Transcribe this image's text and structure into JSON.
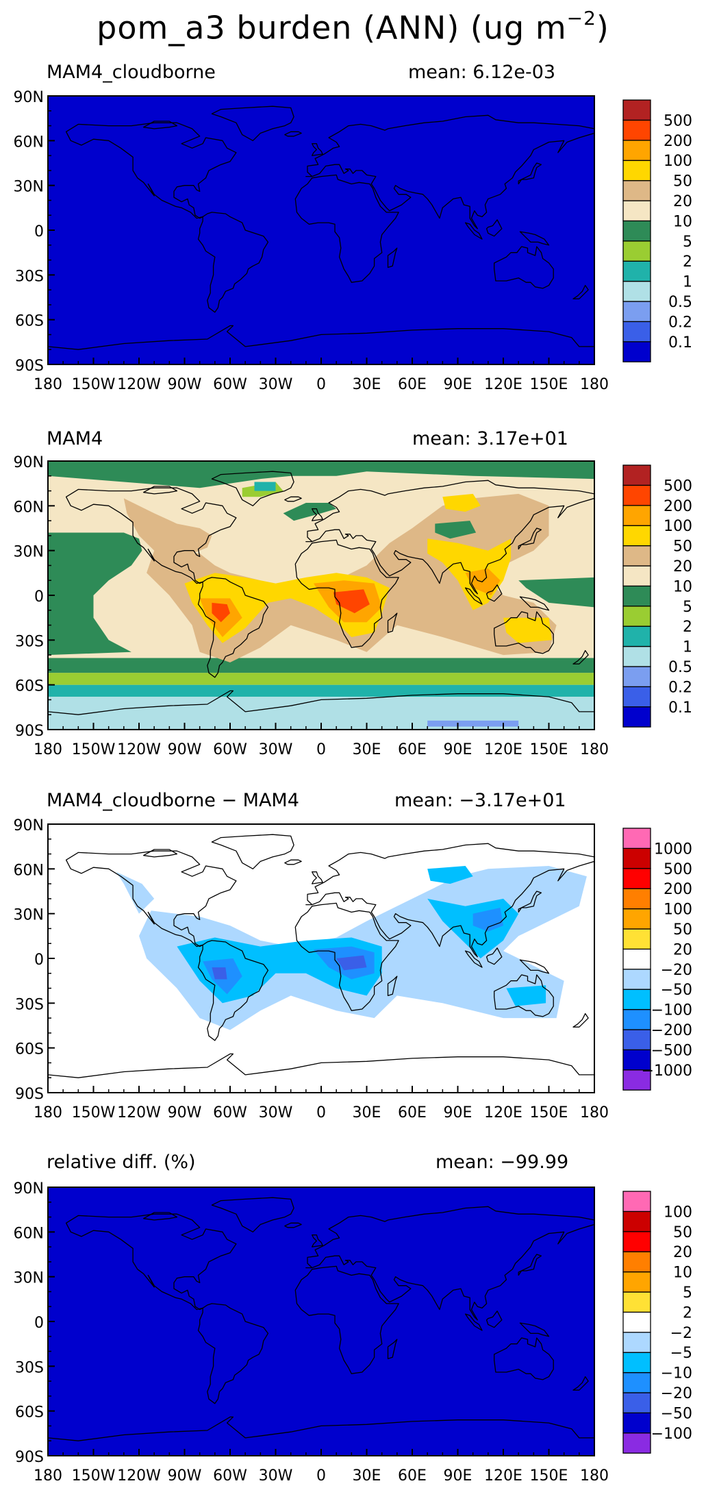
{
  "title": {
    "main": "pom_a3 burden (ANN) (ug m",
    "unit_exponent": "−2",
    "close": ")"
  },
  "axes": {
    "lat_labels": [
      "90N",
      "60N",
      "30N",
      "0",
      "30S",
      "60S",
      "90S"
    ],
    "lon_labels": [
      "180",
      "150W",
      "120W",
      "90W",
      "60W",
      "30W",
      "0",
      "30E",
      "60E",
      "90E",
      "120E",
      "150E",
      "180"
    ]
  },
  "colors": {
    "burden_scale": [
      "#0000CD",
      "#3A5FE8",
      "#7B9EF0",
      "#B0E0E6",
      "#20B2AA",
      "#9ACD32",
      "#2E8B57",
      "#F5E6C4",
      "#DEB887",
      "#FFD700",
      "#FFA500",
      "#FF4500",
      "#B22222"
    ],
    "diff_scale": [
      "#8A2BE2",
      "#0000CD",
      "#3A5FE8",
      "#1E90FF",
      "#00BFFF",
      "#ADD8FF",
      "#FFFFFF",
      "#FFE135",
      "#FFA500",
      "#FF7F00",
      "#FF0000",
      "#CC0000",
      "#FF69B4"
    ],
    "coast": "#000000",
    "frame": "#000000"
  },
  "chart_data": [
    {
      "type": "heatmap",
      "label": "MAM4_cloudborne",
      "mean_text": "mean: 6.12e-03",
      "mean": 0.00612,
      "colorbar_levels": [
        "0.1",
        "0.2",
        "0.5",
        "1",
        "2",
        "5",
        "10",
        "20",
        "50",
        "100",
        "200",
        "500"
      ],
      "palette": "burden_scale",
      "field": "uniform",
      "field_level": 0
    },
    {
      "type": "heatmap",
      "label": "MAM4",
      "mean_text": "mean: 3.17e+01",
      "mean": 31.7,
      "colorbar_levels": [
        "0.1",
        "0.2",
        "0.5",
        "1",
        "2",
        "5",
        "10",
        "20",
        "50",
        "100",
        "200",
        "500"
      ],
      "palette": "burden_scale",
      "field": "mam4"
    },
    {
      "type": "heatmap",
      "label": "MAM4_cloudborne − MAM4",
      "mean_text": "mean: −3.17e+01",
      "mean": -31.7,
      "colorbar_levels": [
        "−1000",
        "−500",
        "−200",
        "−100",
        "−50",
        "−20",
        "20",
        "50",
        "100",
        "200",
        "500",
        "1000"
      ],
      "palette": "diff_scale",
      "field": "diff"
    },
    {
      "type": "heatmap",
      "label": "relative diff. (%)",
      "mean_text": "mean: −99.99",
      "mean": -99.99,
      "colorbar_levels": [
        "−100",
        "−50",
        "−20",
        "−10",
        "−5",
        "−2",
        "2",
        "5",
        "10",
        "20",
        "50",
        "100"
      ],
      "palette": "diff_scale",
      "field": "uniform",
      "field_level": 1
    }
  ]
}
